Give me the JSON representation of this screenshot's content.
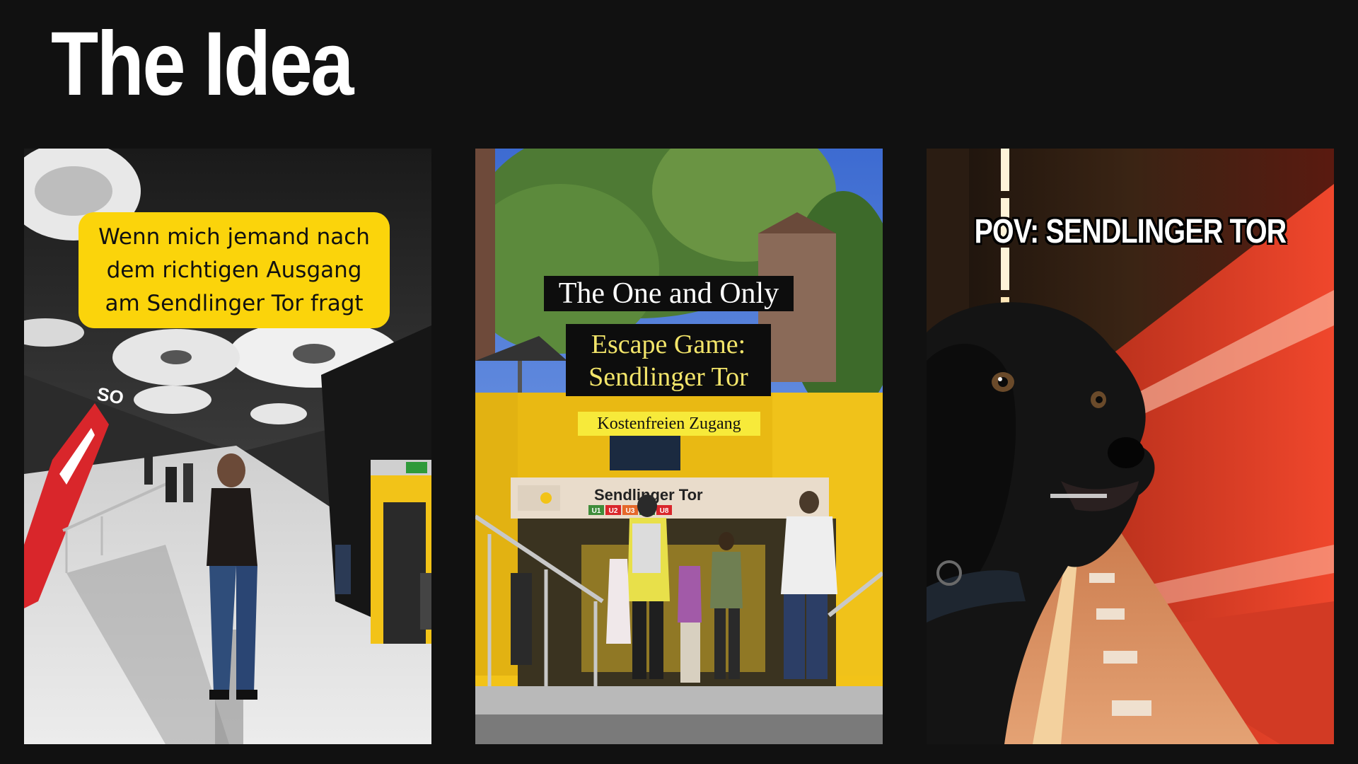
{
  "slide": {
    "title": "The Idea"
  },
  "cards": [
    {
      "caption": "Wenn mich jemand nach\ndem richtigen Ausgang\nam Sendlinger Tor fragt",
      "sign_text": "SO"
    },
    {
      "line1": "The One and Only",
      "line2": "Escape Game:\nSendlinger Tor",
      "line3": "Kostenfreien Zugang",
      "station_sign": "Sendlinger Tor",
      "lines": [
        "U1",
        "U2",
        "U3",
        "U7",
        "U8"
      ]
    },
    {
      "caption": "POV: SENDLINGER TOR"
    }
  ],
  "colors": {
    "background": "#111111",
    "caption_yellow": "#fbd40b",
    "station_yellow": "#f2c318",
    "train_red": "#e8432a"
  }
}
